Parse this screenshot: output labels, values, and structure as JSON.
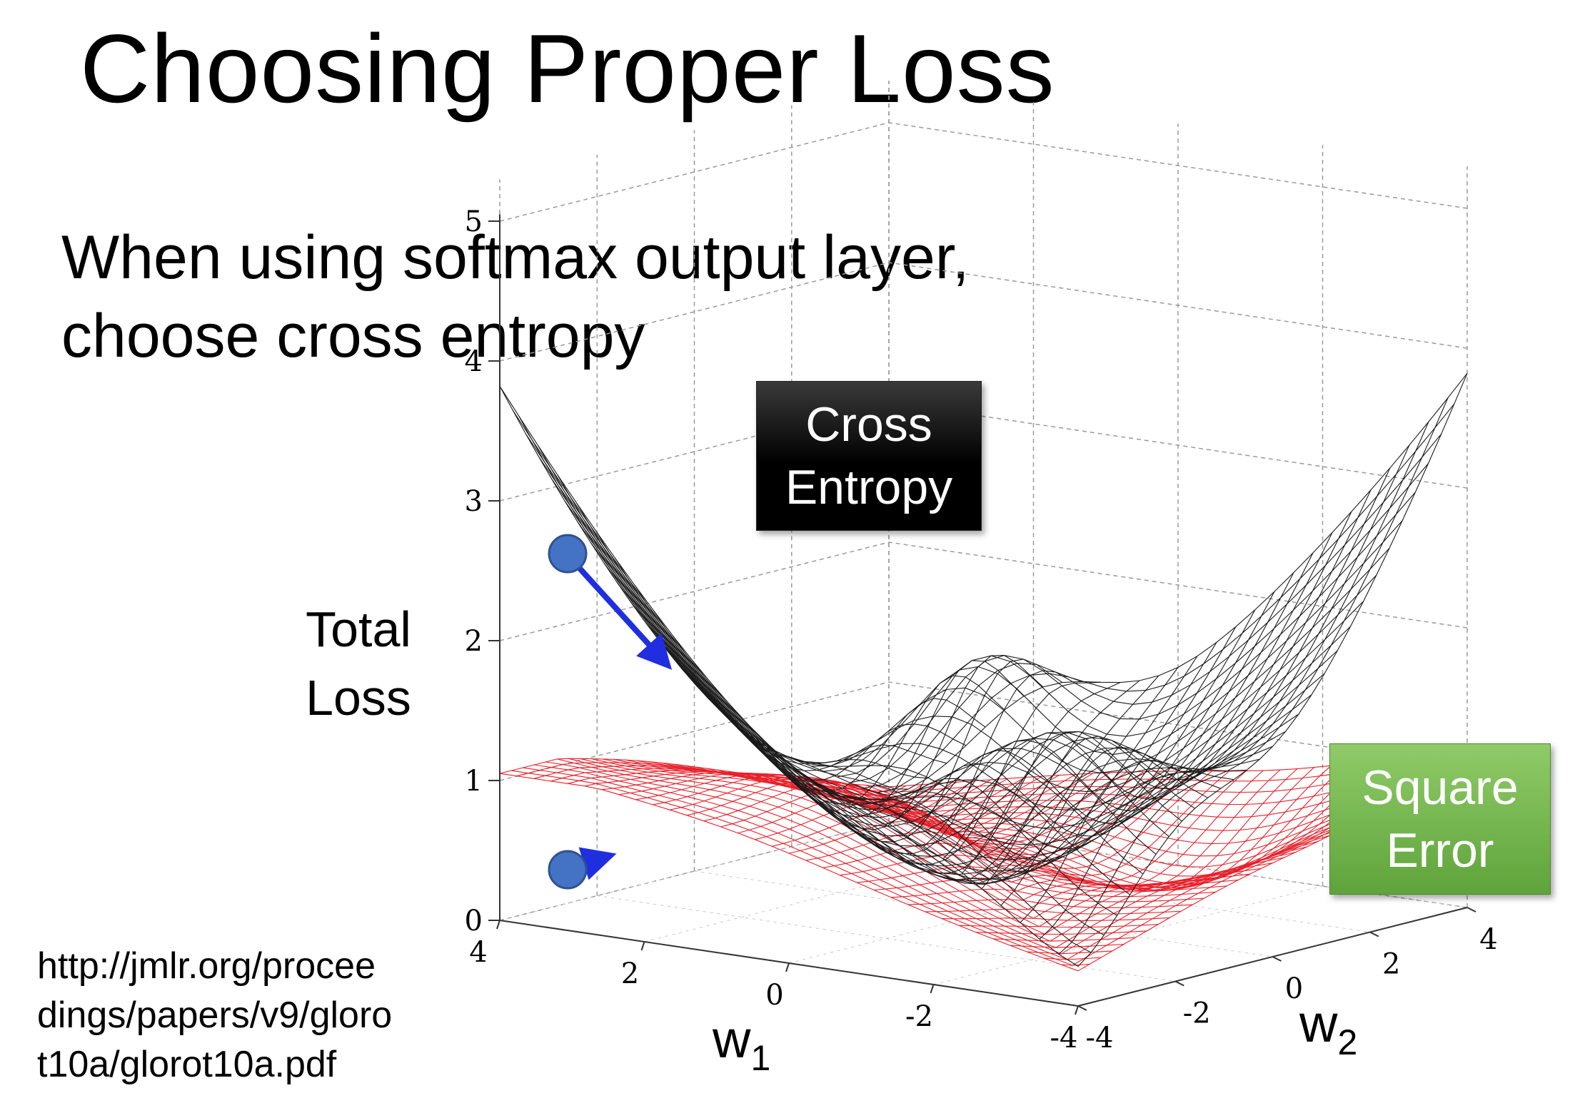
{
  "slide": {
    "title": "Choosing Proper Loss",
    "body_line_1": "When using softmax output layer,",
    "body_line_2": "choose cross entropy",
    "y_axis_label_line_1": "Total",
    "y_axis_label_line_2": "Loss",
    "reference_lines": [
      "http://jmlr.org/procee",
      "dings/papers/v9/gloro",
      "t10a/glorot10a.pdf"
    ]
  },
  "diagram": {
    "z_ticks": [
      "0",
      "1",
      "2",
      "3",
      "4",
      "5"
    ],
    "w1_ticks": [
      "4",
      "2",
      "0",
      "-2",
      "-4"
    ],
    "w2_ticks": [
      "-4",
      "-2",
      "0",
      "2",
      "4"
    ],
    "w1_label": "w",
    "w1_subscript": "1",
    "w2_label": "w",
    "w2_subscript": "2",
    "cross_entropy_label_line_1": "Cross",
    "cross_entropy_label_line_2": "Entropy",
    "square_error_label_line_1": "Square",
    "square_error_label_line_2": "Error",
    "colors": {
      "cross_entropy_mesh": "#1a1a1a",
      "square_error_mesh": "#e8202a",
      "point": "#4472c4",
      "arrow": "#1f2fe0",
      "cross_entropy_badge": "#000000",
      "square_error_badge": "#70ad47"
    }
  }
}
